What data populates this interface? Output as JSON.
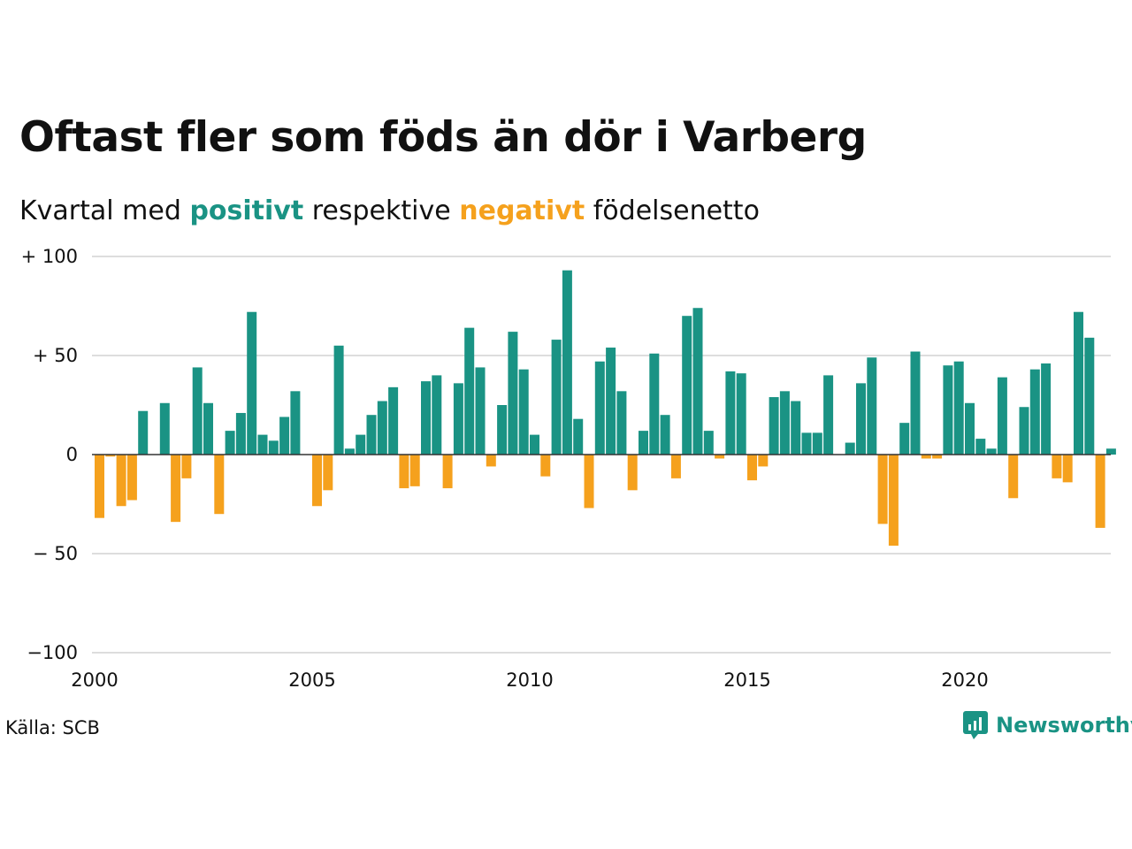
{
  "title": "Oftast fler som föds än dör i Varberg",
  "subtitle": {
    "prefix": "Kvartal med",
    "positive_word": "positivt",
    "middle": "respektive",
    "negative_word": "negativt",
    "suffix": "födelsenetto"
  },
  "source": "Källa: SCB",
  "brand": {
    "name": "Newsworthy",
    "icon": "newsworthy-logo-icon"
  },
  "colors": {
    "positive": "#1a9384",
    "negative": "#f5a11d",
    "grid": "#dddddd",
    "zero": "#333333"
  },
  "chart_data": {
    "type": "bar",
    "x_start": "2000 Q1",
    "x_interval": "quarter",
    "x_ticks": [
      "2000",
      "2005",
      "2010",
      "2015",
      "2020"
    ],
    "y_ticks": [
      "+ 100",
      "+  50",
      "0",
      "− 50",
      "−100"
    ],
    "ylim": [
      -100,
      100
    ],
    "grid": true,
    "values": [
      -32,
      -1,
      -26,
      -23,
      22,
      0,
      26,
      -34,
      -12,
      44,
      26,
      -30,
      12,
      21,
      72,
      10,
      7,
      19,
      32,
      0,
      -26,
      -18,
      55,
      3,
      10,
      20,
      27,
      34,
      -17,
      -16,
      37,
      40,
      -17,
      36,
      64,
      44,
      -6,
      25,
      62,
      43,
      10,
      -11,
      58,
      93,
      18,
      -27,
      47,
      54,
      32,
      -18,
      12,
      51,
      20,
      -12,
      70,
      74,
      12,
      -2,
      42,
      41,
      -13,
      -6,
      29,
      32,
      27,
      11,
      11,
      40,
      0,
      6,
      36,
      49,
      -35,
      -46,
      16,
      52,
      -2,
      -2,
      45,
      47,
      26,
      8,
      3,
      39,
      -22,
      24,
      43,
      46,
      -12,
      -14,
      72,
      59,
      -37,
      3
    ]
  }
}
